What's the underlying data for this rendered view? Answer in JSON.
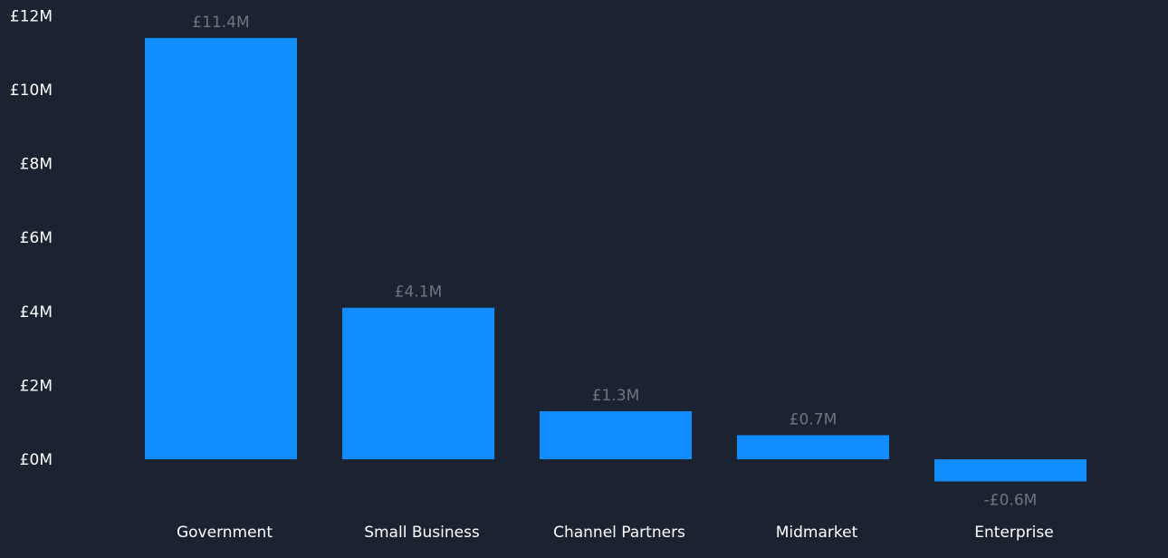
{
  "chart_data": {
    "type": "bar",
    "categories": [
      "Government",
      "Small Business",
      "Channel Partners",
      "Midmarket",
      "Enterprise"
    ],
    "values": [
      11.4,
      4.1,
      1.3,
      0.65,
      -0.6
    ],
    "data_labels": [
      "£11.4M",
      "£4.1M",
      "£1.3M",
      "£0.7M",
      "-£0.6M"
    ],
    "y_ticks": [
      0,
      2,
      4,
      6,
      8,
      10,
      12
    ],
    "y_tick_labels": [
      "£0M",
      "£2M",
      "£4M",
      "£6M",
      "£8M",
      "£10M",
      "£12M"
    ],
    "ylim": [
      -0.6,
      12
    ],
    "grid": false,
    "title": "",
    "xlabel": "",
    "ylabel": ""
  },
  "colors": {
    "background": "#1b2230",
    "bar": "#118dff",
    "axis_text": "#ffffff",
    "data_label": "#6f7480"
  }
}
